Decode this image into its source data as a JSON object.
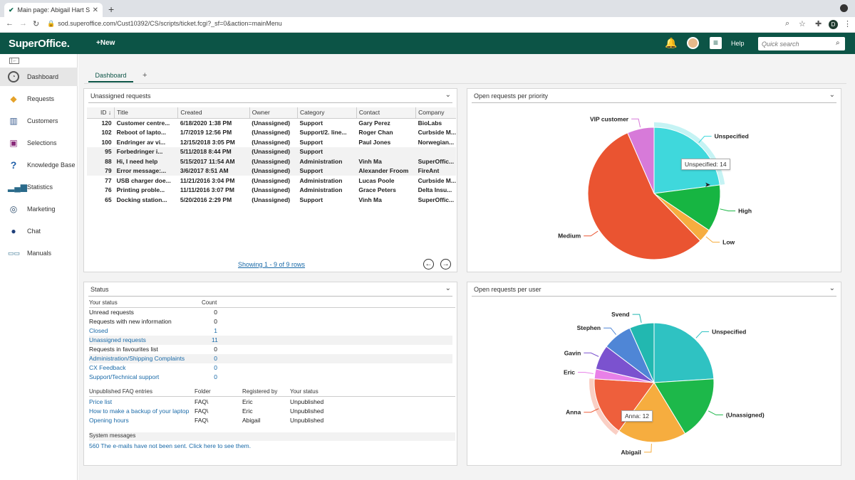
{
  "browser": {
    "tab_title": "Main page: Abigail Hart Superof",
    "url": "sod.superoffice.com/Cust10392/CS/scripts/ticket.fcgi?_sf=0&action=mainMenu",
    "profile_initial": "D"
  },
  "header": {
    "logo": "SuperOffice.",
    "new_label": "New",
    "help_label": "Help",
    "search_placeholder": "Quick search"
  },
  "sidebar": {
    "items": [
      {
        "label": "Dashboard",
        "icon": "gauge-icon"
      },
      {
        "label": "Requests",
        "icon": "ticket-icon"
      },
      {
        "label": "Customers",
        "icon": "buildings-icon"
      },
      {
        "label": "Selections",
        "icon": "selection-icon"
      },
      {
        "label": "Knowledge Base",
        "icon": "question-icon"
      },
      {
        "label": "Statistics",
        "icon": "bar-chart-icon"
      },
      {
        "label": "Marketing",
        "icon": "target-icon"
      },
      {
        "label": "Chat",
        "icon": "chat-icon"
      },
      {
        "label": "Manuals",
        "icon": "manuals-icon"
      }
    ]
  },
  "dashboard": {
    "tab_label": "Dashboard",
    "add_tab": "+"
  },
  "unassigned": {
    "title": "Unassigned requests",
    "columns": [
      "ID ↓",
      "Title",
      "Created",
      "Owner",
      "Category",
      "Contact",
      "Company"
    ],
    "rows": [
      [
        "120",
        "Customer centre...",
        "6/18/2020 1:38 PM",
        "(Unassigned)",
        "Support",
        "Gary Perez",
        "BioLabs"
      ],
      [
        "102",
        "Reboot of lapto...",
        "1/7/2019 12:56 PM",
        "(Unassigned)",
        "Support/2. line...",
        "Roger Chan",
        "Curbside M..."
      ],
      [
        "100",
        "Endringer av vi...",
        "12/15/2018 3:05 PM",
        "(Unassigned)",
        "Support",
        "Paul Jones",
        "Norwegian..."
      ],
      [
        "95",
        "Forbedringer i...",
        "5/11/2018 8:44 PM",
        "(Unassigned)",
        "Support",
        "",
        ""
      ],
      [
        "88",
        "Hi, I need help",
        "5/15/2017 11:54 AM",
        "(Unassigned)",
        "Administration",
        "Vinh Ma",
        "SuperOffic..."
      ],
      [
        "79",
        "Error message:...",
        "3/6/2017 8:51 AM",
        "(Unassigned)",
        "Support",
        "Alexander Froom",
        "FireAnt"
      ],
      [
        "77",
        "USB charger doe...",
        "11/21/2016 3:04 PM",
        "(Unassigned)",
        "Administration",
        "Lucas Poole",
        "Curbside M..."
      ],
      [
        "76",
        "Printing proble...",
        "11/11/2016 3:07 PM",
        "(Unassigned)",
        "Administration",
        "Grace Peters",
        "Delta Insu..."
      ],
      [
        "65",
        "Docking station...",
        "5/20/2016 2:29 PM",
        "(Unassigned)",
        "Support",
        "Vinh Ma",
        "SuperOffic..."
      ]
    ],
    "showing": "Showing 1 - 9 of 9 rows"
  },
  "status": {
    "title": "Status",
    "col_status": "Your status",
    "col_count": "Count",
    "rows": [
      {
        "label": "Unread requests",
        "count": "0",
        "link": false
      },
      {
        "label": "Requests with new information",
        "count": "0",
        "link": false
      },
      {
        "label": "Closed",
        "count": "1",
        "link": true
      },
      {
        "label": "Unassigned requests",
        "count": "11",
        "link": true
      },
      {
        "label": "Requests in favourites list",
        "count": "0",
        "link": false
      },
      {
        "label": "Administration/Shipping Complaints",
        "count": "0",
        "link": true
      },
      {
        "label": "CX Feedback",
        "count": "0",
        "link": true
      },
      {
        "label": "Support/Technical support",
        "count": "0",
        "link": true
      }
    ],
    "faq_headers": [
      "Unpublished FAQ entries",
      "Folder",
      "Registered by",
      "Your status"
    ],
    "faq_rows": [
      [
        "Price list",
        "FAQ\\",
        "Eric",
        "Unpublished"
      ],
      [
        "How to make a backup of your laptop",
        "FAQ\\",
        "Eric",
        "Unpublished"
      ],
      [
        "Opening hours",
        "FAQ\\",
        "Abigail",
        "Unpublished"
      ]
    ],
    "system_messages_label": "System messages",
    "system_message": "560 The e-mails have not been sent. Click here to see them."
  },
  "priority_chart": {
    "title": "Open requests per priority",
    "tooltip": "Unspecified: 14"
  },
  "user_chart": {
    "title": "Open requests per user",
    "tooltip": "Anna: 12"
  },
  "chart_data": [
    {
      "type": "pie",
      "title": "Open requests per priority",
      "categories": [
        "Unspecified",
        "High",
        "Low",
        "Medium",
        "VIP customer"
      ],
      "values": [
        14,
        7,
        2,
        34,
        4
      ],
      "colors": [
        "#3fd8dc",
        "#17b542",
        "#f6ad3f",
        "#ea5431",
        "#d77ad9"
      ]
    },
    {
      "type": "pie",
      "title": "Open requests per user",
      "categories": [
        "Unspecified",
        "(Unassigned)",
        "Abigail",
        "Anna",
        "Eric",
        "Gavin",
        "Stephen",
        "Svend"
      ],
      "values": [
        18,
        13,
        14,
        12,
        2,
        5,
        6,
        5
      ],
      "colors": [
        "#2fc2c2",
        "#1db84a",
        "#f6ad3f",
        "#ee5f3c",
        "#e880e8",
        "#7b52cf",
        "#4f86d6",
        "#22b8b0"
      ]
    }
  ]
}
